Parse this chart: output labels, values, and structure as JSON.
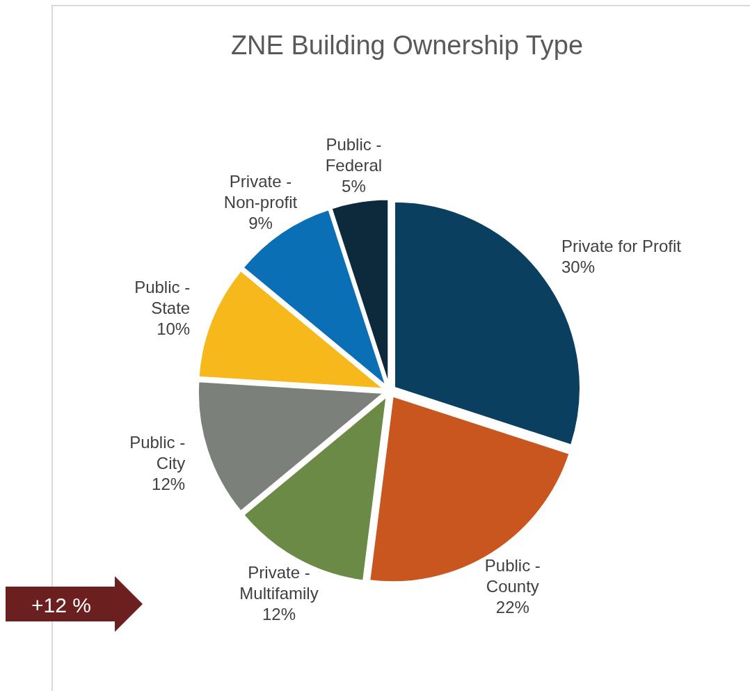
{
  "chart_data": {
    "type": "pie",
    "title": "ZNE Building Ownership Type",
    "categories": [
      "Private for Profit",
      "Public - County",
      "Private - Multifamily",
      "Public - City",
      "Public - State",
      "Private - Non-profit",
      "Public - Federal"
    ],
    "values": [
      30,
      22,
      12,
      12,
      10,
      9,
      5
    ],
    "colors": [
      "#0b3f60",
      "#c9561f",
      "#6a8a45",
      "#7b807a",
      "#f6b81b",
      "#0b6fb6",
      "#0c2a3b"
    ],
    "value_labels": [
      "30%",
      "22%",
      "12%",
      "12%",
      "10%",
      "9%",
      "5%"
    ],
    "annotations": [
      "+12 %"
    ]
  }
}
